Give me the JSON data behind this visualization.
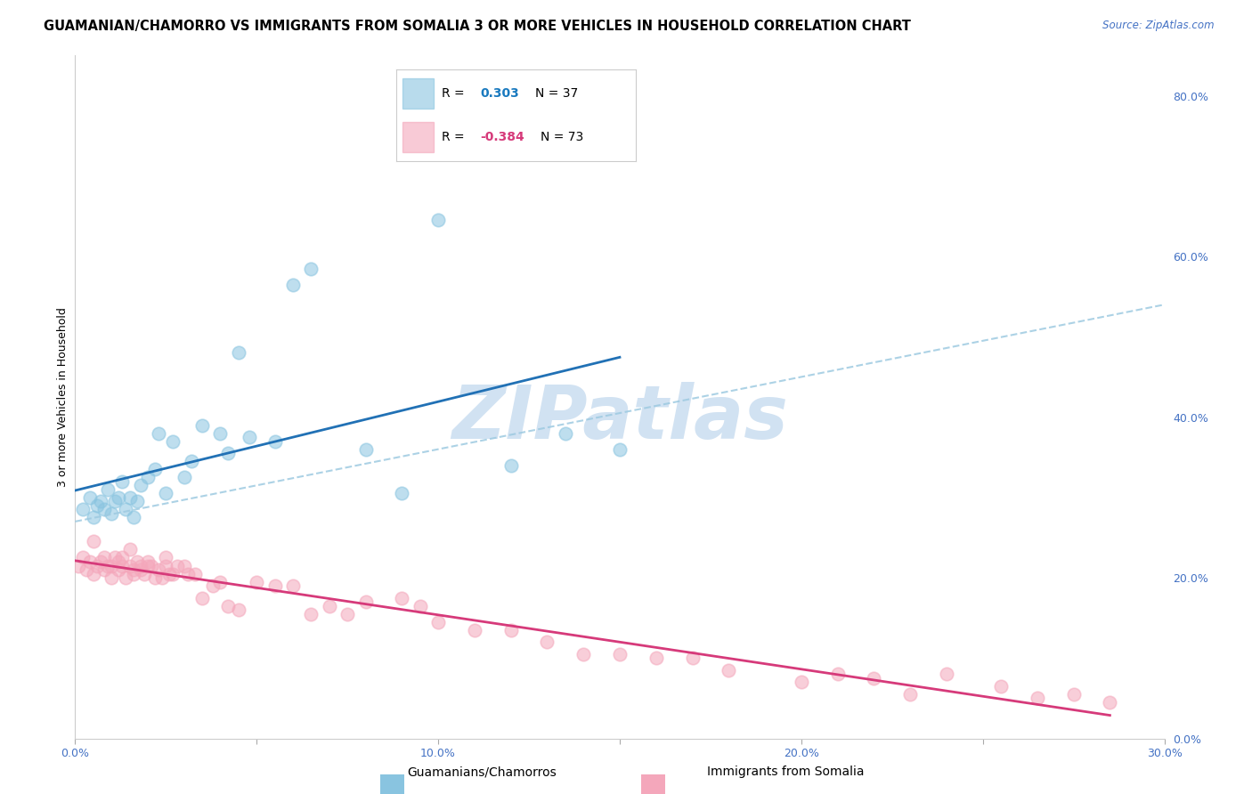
{
  "title": "GUAMANIAN/CHAMORRO VS IMMIGRANTS FROM SOMALIA 3 OR MORE VEHICLES IN HOUSEHOLD CORRELATION CHART",
  "source": "Source: ZipAtlas.com",
  "ylabel": "3 or more Vehicles in Household",
  "xlim": [
    0.0,
    0.3
  ],
  "ylim": [
    0.0,
    0.85
  ],
  "xticks": [
    0.0,
    0.05,
    0.1,
    0.15,
    0.2,
    0.25,
    0.3
  ],
  "xticklabels": [
    "0.0%",
    "",
    "10.0%",
    "",
    "20.0%",
    "",
    "30.0%"
  ],
  "yticks_right": [
    0.0,
    0.2,
    0.4,
    0.6,
    0.8
  ],
  "ytick_right_labels": [
    "0.0%",
    "20.0%",
    "40.0%",
    "60.0%",
    "80.0%"
  ],
  "blue_R": 0.303,
  "blue_N": 37,
  "pink_R": -0.384,
  "pink_N": 73,
  "blue_scatter_color": "#89c4e0",
  "pink_scatter_color": "#f4a7bb",
  "blue_line_color": "#2171b5",
  "pink_line_color": "#d63a7a",
  "dashed_line_color": "#9ecae1",
  "watermark": "ZIPatlas",
  "watermark_color": "#c6dbef",
  "legend_label_blue": "Guamanians/Chamorros",
  "legend_label_pink": "Immigrants from Somalia",
  "blue_scatter_x": [
    0.002,
    0.004,
    0.005,
    0.006,
    0.007,
    0.008,
    0.009,
    0.01,
    0.011,
    0.012,
    0.013,
    0.014,
    0.015,
    0.016,
    0.017,
    0.018,
    0.02,
    0.022,
    0.023,
    0.025,
    0.027,
    0.03,
    0.032,
    0.035,
    0.04,
    0.042,
    0.045,
    0.048,
    0.055,
    0.06,
    0.065,
    0.08,
    0.09,
    0.1,
    0.12,
    0.135,
    0.15
  ],
  "blue_scatter_y": [
    0.285,
    0.3,
    0.275,
    0.29,
    0.295,
    0.285,
    0.31,
    0.28,
    0.295,
    0.3,
    0.32,
    0.285,
    0.3,
    0.275,
    0.295,
    0.315,
    0.325,
    0.335,
    0.38,
    0.305,
    0.37,
    0.325,
    0.345,
    0.39,
    0.38,
    0.355,
    0.48,
    0.375,
    0.37,
    0.565,
    0.585,
    0.36,
    0.305,
    0.645,
    0.34,
    0.38,
    0.36
  ],
  "pink_scatter_x": [
    0.001,
    0.002,
    0.003,
    0.004,
    0.005,
    0.005,
    0.006,
    0.007,
    0.008,
    0.008,
    0.009,
    0.01,
    0.01,
    0.011,
    0.012,
    0.012,
    0.013,
    0.013,
    0.014,
    0.015,
    0.015,
    0.016,
    0.016,
    0.017,
    0.018,
    0.018,
    0.019,
    0.02,
    0.02,
    0.021,
    0.022,
    0.023,
    0.024,
    0.025,
    0.025,
    0.026,
    0.027,
    0.028,
    0.03,
    0.031,
    0.033,
    0.035,
    0.038,
    0.04,
    0.042,
    0.045,
    0.05,
    0.055,
    0.06,
    0.065,
    0.07,
    0.075,
    0.08,
    0.09,
    0.095,
    0.1,
    0.11,
    0.12,
    0.13,
    0.14,
    0.15,
    0.16,
    0.17,
    0.18,
    0.2,
    0.21,
    0.22,
    0.23,
    0.24,
    0.255,
    0.265,
    0.275,
    0.285
  ],
  "pink_scatter_y": [
    0.215,
    0.225,
    0.21,
    0.22,
    0.205,
    0.245,
    0.215,
    0.22,
    0.21,
    0.225,
    0.215,
    0.2,
    0.215,
    0.225,
    0.22,
    0.21,
    0.215,
    0.225,
    0.2,
    0.215,
    0.235,
    0.21,
    0.205,
    0.22,
    0.21,
    0.215,
    0.205,
    0.215,
    0.22,
    0.215,
    0.2,
    0.21,
    0.2,
    0.215,
    0.225,
    0.205,
    0.205,
    0.215,
    0.215,
    0.205,
    0.205,
    0.175,
    0.19,
    0.195,
    0.165,
    0.16,
    0.195,
    0.19,
    0.19,
    0.155,
    0.165,
    0.155,
    0.17,
    0.175,
    0.165,
    0.145,
    0.135,
    0.135,
    0.12,
    0.105,
    0.105,
    0.1,
    0.1,
    0.085,
    0.07,
    0.08,
    0.075,
    0.055,
    0.08,
    0.065,
    0.05,
    0.055,
    0.045
  ],
  "background_color": "#ffffff",
  "grid_color": "#dddddd",
  "title_fontsize": 10.5,
  "axis_label_fontsize": 9,
  "tick_label_fontsize": 9,
  "right_tick_color": "#4472c4",
  "bottom_tick_color": "#4472c4",
  "legend_box_color": "#cccccc",
  "legend_blue_R_color": "#1a7abf",
  "legend_pink_R_color": "#d63a7a"
}
